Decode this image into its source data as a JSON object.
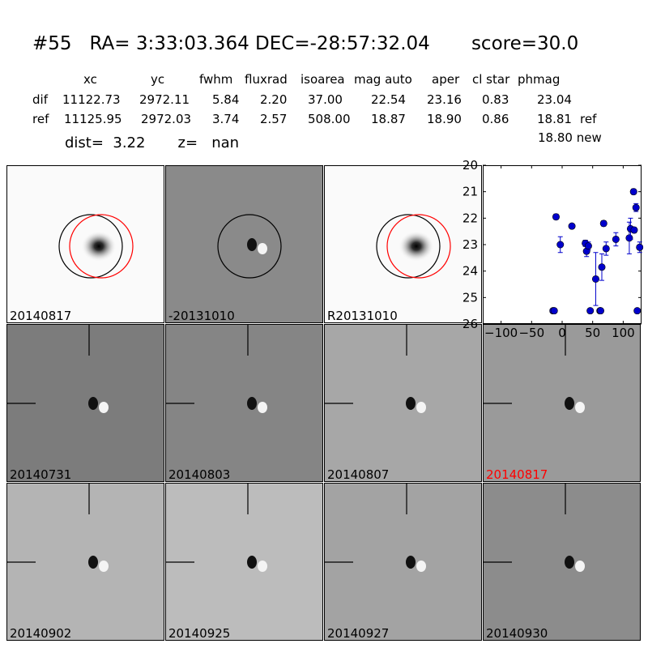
{
  "header": {
    "title": "#55   RA= 3:33:03.364 DEC=-28:57:32.04       score=30.0",
    "columns": [
      "xc",
      "yc",
      "fwhm",
      "fluxrad",
      "isoarea",
      "mag auto",
      "aper",
      "cl star",
      "phmag"
    ],
    "rows": [
      {
        "name": "dif",
        "values": [
          "11122.73",
          "2972.11",
          "5.84",
          "2.20",
          "37.00",
          "22.54",
          "23.16",
          "0.83",
          "23.04"
        ],
        "suffix": ""
      },
      {
        "name": "ref",
        "values": [
          "11125.95",
          "2972.03",
          "3.74",
          "2.57",
          "508.00",
          "18.87",
          "18.90",
          "0.86",
          "18.81"
        ],
        "suffix": "ref"
      }
    ],
    "phmag_new": "18.80 new",
    "dist_line": "dist=  3.22       z=   nan"
  },
  "panels": [
    {
      "label": "20140817",
      "kind": "ref-star",
      "circles": [
        "black",
        "red"
      ],
      "label_color": "#000000"
    },
    {
      "label": "-20131010",
      "kind": "diff",
      "circles": [
        "black"
      ],
      "label_color": "#000000"
    },
    {
      "label": "R20131010",
      "kind": "ref-star",
      "circles": [
        "black",
        "red"
      ],
      "label_color": "#000000"
    },
    {
      "label": "20140731",
      "kind": "diff-cross",
      "label_color": "#000000"
    },
    {
      "label": "20140803",
      "kind": "diff-cross",
      "label_color": "#000000"
    },
    {
      "label": "20140807",
      "kind": "diff-cross",
      "label_color": "#000000"
    },
    {
      "label": "20140817",
      "kind": "diff-cross",
      "label_color": "#ff0000"
    },
    {
      "label": "20140902",
      "kind": "diff-cross",
      "label_color": "#000000"
    },
    {
      "label": "20140925",
      "kind": "diff-cross",
      "label_color": "#000000"
    },
    {
      "label": "20140927",
      "kind": "diff-cross",
      "label_color": "#000000"
    },
    {
      "label": "20140930",
      "kind": "diff-cross",
      "label_color": "#000000"
    }
  ],
  "chart_data": {
    "type": "scatter",
    "title": "",
    "xlabel": "",
    "ylabel": "",
    "xlim": [
      -130,
      130
    ],
    "ylim": [
      26,
      20
    ],
    "y_inverted": true,
    "xticks": [
      "−100",
      "−50",
      "0",
      "50",
      "100"
    ],
    "xtick_values": [
      -100,
      -50,
      0,
      50,
      100
    ],
    "yticks": [
      "20",
      "21",
      "22",
      "23",
      "24",
      "25",
      "26"
    ],
    "ytick_values": [
      20,
      21,
      22,
      23,
      24,
      25,
      26
    ],
    "marker_color": "#0000cc",
    "points": [
      {
        "x": -15,
        "y": 25.5,
        "err": 0.05
      },
      {
        "x": -13,
        "y": 25.5,
        "err": 0.05
      },
      {
        "x": -10,
        "y": 21.95,
        "err": 0.1
      },
      {
        "x": -3,
        "y": 23.0,
        "err": 0.3
      },
      {
        "x": 16,
        "y": 22.3,
        "err": 0.08
      },
      {
        "x": 38,
        "y": 22.95,
        "err": 0.12
      },
      {
        "x": 40,
        "y": 23.25,
        "err": 0.2
      },
      {
        "x": 43,
        "y": 23.05,
        "err": 0.15
      },
      {
        "x": 46,
        "y": 25.5,
        "err": 0.05
      },
      {
        "x": 55,
        "y": 24.3,
        "err": 1.0
      },
      {
        "x": 62,
        "y": 25.5,
        "err": 0.05
      },
      {
        "x": 63,
        "y": 25.5,
        "err": 0.05
      },
      {
        "x": 65,
        "y": 23.85,
        "err": 0.5
      },
      {
        "x": 68,
        "y": 22.2,
        "err": 0.1
      },
      {
        "x": 72,
        "y": 23.15,
        "err": 0.25
      },
      {
        "x": 88,
        "y": 22.8,
        "err": 0.25
      },
      {
        "x": 110,
        "y": 22.75,
        "err": 0.6
      },
      {
        "x": 112,
        "y": 22.4,
        "err": 0.4
      },
      {
        "x": 117,
        "y": 21.0,
        "err": 0.1
      },
      {
        "x": 118,
        "y": 22.45,
        "err": 0.1
      },
      {
        "x": 121,
        "y": 21.6,
        "err": 0.15
      },
      {
        "x": 123,
        "y": 25.5,
        "err": 0.05
      },
      {
        "x": 127,
        "y": 23.1,
        "err": 0.2
      }
    ]
  }
}
